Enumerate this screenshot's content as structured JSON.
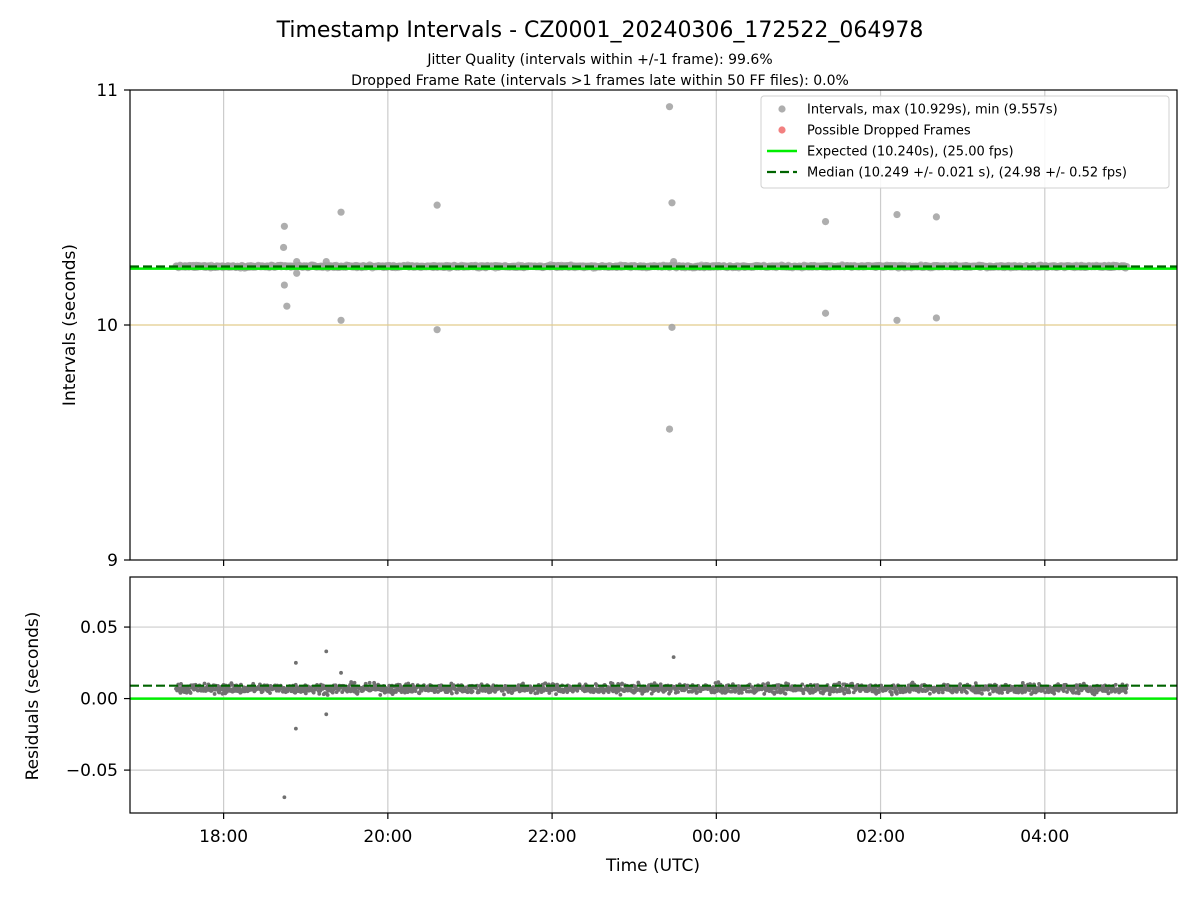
{
  "figure": {
    "title": "Timestamp Intervals - CZ0001_20240306_172522_064978",
    "subtitle_1": "Jitter Quality (intervals within +/-1 frame): 99.6%",
    "subtitle_2": "Dropped Frame Rate (intervals >1 frames late within 50 FF files): 0.0%"
  },
  "colors": {
    "intervals": "#a0a0a0",
    "dropped": "#f06a6a",
    "expected": "#00ee00",
    "median": "#006400",
    "reference_line": "#e2cc8c",
    "residual_points": "#707070",
    "grid": "#cccccc"
  },
  "chart_data": [
    {
      "type": "scatter",
      "panel": "intervals",
      "ylabel": "Intervals (seconds)",
      "xlabel": "",
      "ylim": [
        9,
        11
      ],
      "xlim_hours": [
        16.86,
        29.61
      ],
      "y_ticks": [
        "9",
        "10",
        "11"
      ],
      "x_tick_labels": [
        "18:00",
        "20:00",
        "22:00",
        "00:00",
        "02:00",
        "04:00"
      ],
      "grid": "x",
      "legend_position": "top-right",
      "legend": [
        {
          "kind": "marker",
          "color_key": "intervals",
          "label": "Intervals, max (10.929s), min (9.557s)"
        },
        {
          "kind": "marker",
          "color_key": "dropped",
          "label": "Possible Dropped Frames"
        },
        {
          "kind": "line",
          "color_key": "expected",
          "label": "Expected (10.240s), (25.00 fps)"
        },
        {
          "kind": "dashed",
          "color_key": "median",
          "label": "Median (10.249 +/- 0.021 s), (24.98 +/- 0.52 fps)"
        }
      ],
      "expected_value": 10.24,
      "median_value": 10.249,
      "reference_value": 10.0,
      "dense_band": {
        "x_start_hour": 17.42,
        "x_end_hour": 29.0,
        "center": 10.249,
        "spread": 0.01
      },
      "outliers": [
        {
          "x": 18.74,
          "y": 10.42
        },
        {
          "x": 18.73,
          "y": 10.33
        },
        {
          "x": 18.74,
          "y": 10.17
        },
        {
          "x": 18.77,
          "y": 10.08
        },
        {
          "x": 18.89,
          "y": 10.27
        },
        {
          "x": 18.89,
          "y": 10.22
        },
        {
          "x": 19.25,
          "y": 10.27
        },
        {
          "x": 19.43,
          "y": 10.48
        },
        {
          "x": 19.43,
          "y": 10.02
        },
        {
          "x": 20.6,
          "y": 10.51
        },
        {
          "x": 20.6,
          "y": 9.98
        },
        {
          "x": 23.43,
          "y": 10.929
        },
        {
          "x": 23.46,
          "y": 10.52
        },
        {
          "x": 23.48,
          "y": 10.27
        },
        {
          "x": 23.46,
          "y": 9.99
        },
        {
          "x": 23.43,
          "y": 9.557
        },
        {
          "x": 25.33,
          "y": 10.44
        },
        {
          "x": 25.33,
          "y": 10.05
        },
        {
          "x": 26.2,
          "y": 10.47
        },
        {
          "x": 26.2,
          "y": 10.02
        },
        {
          "x": 26.68,
          "y": 10.46
        },
        {
          "x": 26.68,
          "y": 10.03
        }
      ],
      "dropped_frames": []
    },
    {
      "type": "scatter",
      "panel": "residuals",
      "ylabel": "Residuals (seconds)",
      "xlabel": "Time (UTC)",
      "ylim": [
        -0.08,
        0.085
      ],
      "xlim_hours": [
        16.86,
        29.61
      ],
      "y_ticks": [
        "0.05",
        "0.00",
        "−0.05"
      ],
      "y_tick_values": [
        0.05,
        0.0,
        -0.05
      ],
      "x_tick_labels": [
        "18:00",
        "20:00",
        "22:00",
        "00:00",
        "02:00",
        "04:00"
      ],
      "grid": "both",
      "zero_value": 0.0,
      "median_value": 0.009,
      "dense_band": {
        "x_start_hour": 17.42,
        "x_end_hour": 29.0,
        "center": 0.007,
        "spread": 0.006
      },
      "outliers": [
        {
          "x": 18.74,
          "y": -0.069
        },
        {
          "x": 18.88,
          "y": -0.021
        },
        {
          "x": 18.88,
          "y": 0.025
        },
        {
          "x": 19.25,
          "y": 0.033
        },
        {
          "x": 19.25,
          "y": -0.011
        },
        {
          "x": 19.43,
          "y": 0.018
        },
        {
          "x": 23.48,
          "y": 0.029
        }
      ]
    }
  ]
}
